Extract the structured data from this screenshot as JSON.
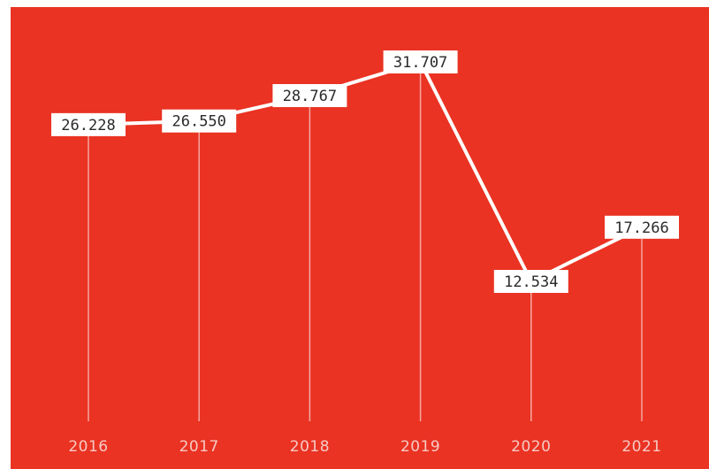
{
  "chart_data": {
    "type": "line",
    "categories": [
      "2016",
      "2017",
      "2018",
      "2019",
      "2020",
      "2021"
    ],
    "values": [
      26228,
      26550,
      28767,
      31707,
      12534,
      17266
    ],
    "data_labels": [
      "26.228",
      "26.550",
      "28.767",
      "31.707",
      "12.534",
      "17.266"
    ],
    "title": "",
    "xlabel": "",
    "ylabel": "",
    "ylim": [
      0,
      35000
    ],
    "grid": false,
    "legend": "none"
  },
  "colors": {
    "background": "#ea3323",
    "line": "#ffffff",
    "drop_line": "#f5a8a0",
    "label_box": "#ffffff",
    "label_text": "#2a2a2a",
    "tick_text": "#f7c9c4"
  }
}
